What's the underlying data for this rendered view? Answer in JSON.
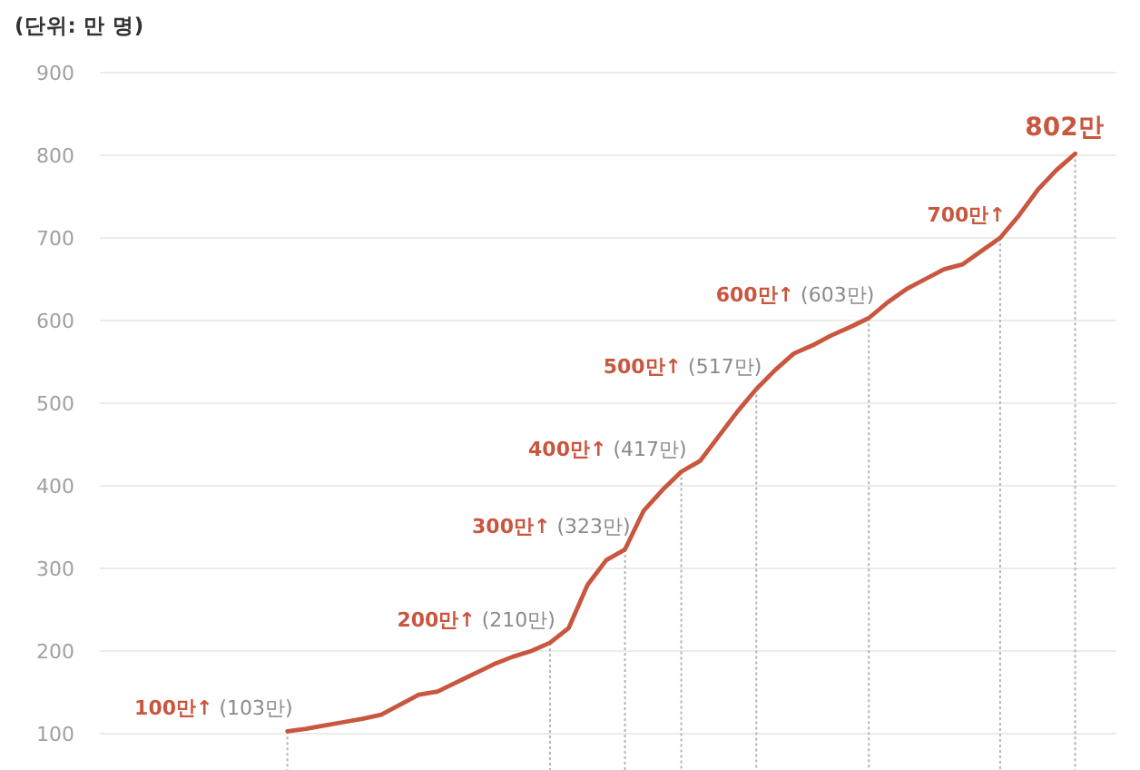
{
  "chart_data": {
    "type": "line",
    "ylabel": "(단위: 만 명)",
    "categories": [
      null,
      null,
      null,
      null,
      null,
      null,
      null,
      null,
      null,
      null,
      null,
      null,
      null,
      null,
      null,
      null,
      null,
      null,
      null,
      null,
      null,
      null,
      null,
      null,
      null,
      null,
      null,
      null,
      null,
      null,
      null,
      null,
      null,
      null,
      null,
      null,
      null,
      null,
      null,
      null,
      null,
      null,
      null
    ],
    "values": [
      103,
      106,
      110,
      114,
      118,
      123,
      135,
      147,
      151,
      162,
      173,
      184,
      193,
      200,
      210,
      228,
      280,
      310,
      323,
      370,
      395,
      417,
      430,
      460,
      490,
      517,
      540,
      560,
      570,
      582,
      592,
      603,
      622,
      638,
      650,
      662,
      668,
      684,
      700,
      727,
      758,
      782,
      802
    ],
    "value_labels": [
      "**100만↑** (103만)",
      null,
      null,
      null,
      null,
      null,
      null,
      null,
      null,
      null,
      null,
      null,
      null,
      null,
      "**200만↑** (210만)",
      null,
      null,
      null,
      "**300만↑** (323만)",
      null,
      null,
      "**400만↑** (417만)",
      null,
      null,
      null,
      "**500만↑** (517만)",
      null,
      null,
      null,
      null,
      null,
      "**600만↑** (603만)",
      null,
      null,
      null,
      null,
      null,
      null,
      "**700만↑**",
      null,
      null,
      null,
      "802만"
    ],
    "color": "#c9563f",
    "ylim": [
      100,
      900
    ],
    "yticks": [
      100,
      200,
      300,
      400,
      500,
      600,
      700,
      800,
      900
    ],
    "grid": "y",
    "tick_labels": "y",
    "marker": "none",
    "line_style": "solid"
  }
}
